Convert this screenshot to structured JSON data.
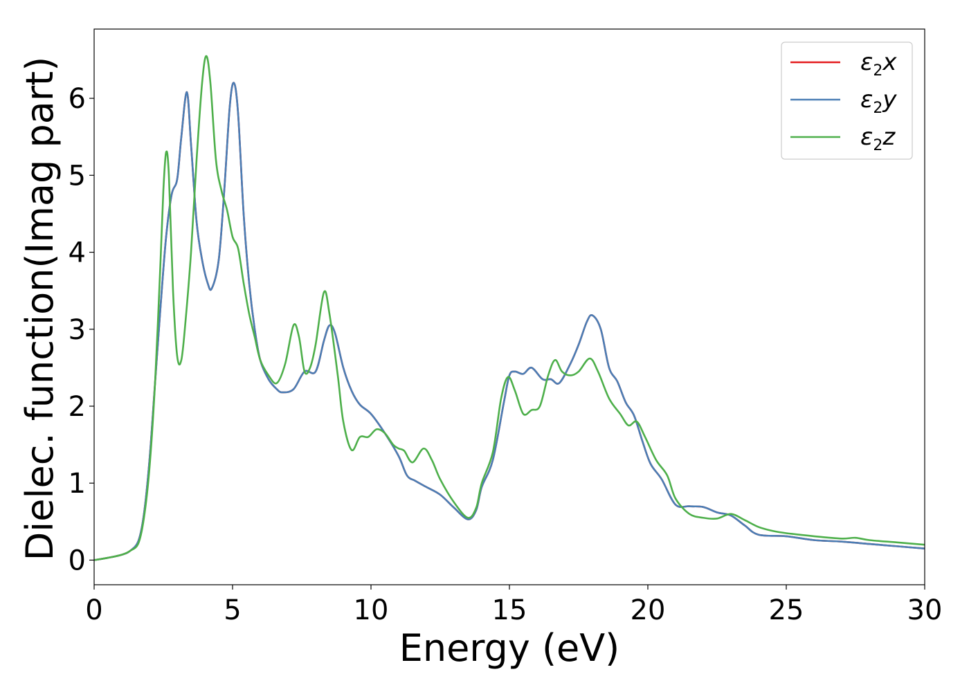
{
  "chart_data": {
    "type": "line",
    "title": "",
    "xlabel": "Energy (eV)",
    "ylabel": "Dielec. function(Imag part)",
    "xlim": [
      0,
      30
    ],
    "ylim": [
      -0.32,
      6.9
    ],
    "xticks": [
      "0",
      "5",
      "10",
      "15",
      "20",
      "25",
      "30"
    ],
    "yticks": [
      "0",
      "1",
      "2",
      "3",
      "4",
      "5",
      "6"
    ],
    "grid": false,
    "legend": {
      "placement": "top-right"
    },
    "series": [
      {
        "name": "ε₂x",
        "legend_base": "ε",
        "legend_sub": "2",
        "legend_var": "x",
        "color": "#e41a1c",
        "points": [
          [
            0,
            0
          ],
          [
            0.5,
            0.03
          ],
          [
            1.0,
            0.07
          ],
          [
            1.3,
            0.12
          ],
          [
            1.6,
            0.25
          ],
          [
            1.8,
            0.6
          ],
          [
            2.0,
            1.3
          ],
          [
            2.2,
            2.3
          ],
          [
            2.4,
            3.3
          ],
          [
            2.6,
            4.2
          ],
          [
            2.8,
            4.75
          ],
          [
            3.0,
            4.95
          ],
          [
            3.15,
            5.5
          ],
          [
            3.35,
            6.08
          ],
          [
            3.5,
            5.4
          ],
          [
            3.7,
            4.4
          ],
          [
            3.9,
            3.9
          ],
          [
            4.1,
            3.6
          ],
          [
            4.25,
            3.53
          ],
          [
            4.5,
            3.9
          ],
          [
            4.7,
            4.8
          ],
          [
            4.9,
            5.9
          ],
          [
            5.05,
            6.2
          ],
          [
            5.2,
            5.8
          ],
          [
            5.4,
            4.5
          ],
          [
            5.6,
            3.6
          ],
          [
            5.8,
            3.0
          ],
          [
            6.0,
            2.6
          ],
          [
            6.3,
            2.35
          ],
          [
            6.6,
            2.22
          ],
          [
            6.8,
            2.18
          ],
          [
            7.2,
            2.22
          ],
          [
            7.6,
            2.45
          ],
          [
            8.0,
            2.45
          ],
          [
            8.3,
            2.85
          ],
          [
            8.5,
            3.05
          ],
          [
            8.7,
            2.95
          ],
          [
            9.0,
            2.5
          ],
          [
            9.3,
            2.2
          ],
          [
            9.6,
            2.02
          ],
          [
            10.0,
            1.9
          ],
          [
            10.5,
            1.65
          ],
          [
            11.0,
            1.35
          ],
          [
            11.3,
            1.1
          ],
          [
            11.6,
            1.03
          ],
          [
            12.0,
            0.95
          ],
          [
            12.5,
            0.85
          ],
          [
            13.0,
            0.68
          ],
          [
            13.5,
            0.53
          ],
          [
            13.8,
            0.65
          ],
          [
            14.0,
            0.95
          ],
          [
            14.4,
            1.3
          ],
          [
            14.8,
            2.05
          ],
          [
            15.0,
            2.4
          ],
          [
            15.2,
            2.45
          ],
          [
            15.5,
            2.42
          ],
          [
            15.8,
            2.5
          ],
          [
            16.2,
            2.35
          ],
          [
            16.5,
            2.35
          ],
          [
            16.8,
            2.3
          ],
          [
            17.2,
            2.55
          ],
          [
            17.5,
            2.8
          ],
          [
            17.8,
            3.1
          ],
          [
            18.0,
            3.18
          ],
          [
            18.3,
            3.0
          ],
          [
            18.6,
            2.5
          ],
          [
            18.9,
            2.32
          ],
          [
            19.2,
            2.05
          ],
          [
            19.5,
            1.88
          ],
          [
            19.8,
            1.55
          ],
          [
            20.1,
            1.25
          ],
          [
            20.5,
            1.05
          ],
          [
            21.0,
            0.72
          ],
          [
            21.5,
            0.7
          ],
          [
            22.0,
            0.69
          ],
          [
            22.5,
            0.62
          ],
          [
            23.0,
            0.58
          ],
          [
            23.5,
            0.45
          ],
          [
            24.0,
            0.33
          ],
          [
            25.0,
            0.31
          ],
          [
            26.0,
            0.26
          ],
          [
            27.0,
            0.24
          ],
          [
            28.0,
            0.21
          ],
          [
            29.0,
            0.18
          ],
          [
            30.0,
            0.15
          ]
        ]
      },
      {
        "name": "ε₂y",
        "legend_base": "ε",
        "legend_sub": "2",
        "legend_var": "y",
        "color": "#4a7eb5",
        "points": [
          [
            0,
            0
          ],
          [
            0.5,
            0.03
          ],
          [
            1.0,
            0.07
          ],
          [
            1.3,
            0.12
          ],
          [
            1.6,
            0.25
          ],
          [
            1.8,
            0.6
          ],
          [
            2.0,
            1.3
          ],
          [
            2.2,
            2.3
          ],
          [
            2.4,
            3.3
          ],
          [
            2.6,
            4.2
          ],
          [
            2.8,
            4.75
          ],
          [
            3.0,
            4.95
          ],
          [
            3.15,
            5.5
          ],
          [
            3.35,
            6.08
          ],
          [
            3.5,
            5.4
          ],
          [
            3.7,
            4.4
          ],
          [
            3.9,
            3.9
          ],
          [
            4.1,
            3.6
          ],
          [
            4.25,
            3.53
          ],
          [
            4.5,
            3.9
          ],
          [
            4.7,
            4.8
          ],
          [
            4.9,
            5.9
          ],
          [
            5.05,
            6.2
          ],
          [
            5.2,
            5.8
          ],
          [
            5.4,
            4.5
          ],
          [
            5.6,
            3.6
          ],
          [
            5.8,
            3.0
          ],
          [
            6.0,
            2.6
          ],
          [
            6.3,
            2.35
          ],
          [
            6.6,
            2.22
          ],
          [
            6.8,
            2.18
          ],
          [
            7.2,
            2.22
          ],
          [
            7.6,
            2.45
          ],
          [
            8.0,
            2.45
          ],
          [
            8.3,
            2.85
          ],
          [
            8.5,
            3.05
          ],
          [
            8.7,
            2.95
          ],
          [
            9.0,
            2.5
          ],
          [
            9.3,
            2.2
          ],
          [
            9.6,
            2.02
          ],
          [
            10.0,
            1.9
          ],
          [
            10.5,
            1.65
          ],
          [
            11.0,
            1.35
          ],
          [
            11.3,
            1.1
          ],
          [
            11.6,
            1.03
          ],
          [
            12.0,
            0.95
          ],
          [
            12.5,
            0.85
          ],
          [
            13.0,
            0.68
          ],
          [
            13.5,
            0.53
          ],
          [
            13.8,
            0.65
          ],
          [
            14.0,
            0.95
          ],
          [
            14.4,
            1.3
          ],
          [
            14.8,
            2.05
          ],
          [
            15.0,
            2.4
          ],
          [
            15.2,
            2.45
          ],
          [
            15.5,
            2.42
          ],
          [
            15.8,
            2.5
          ],
          [
            16.2,
            2.35
          ],
          [
            16.5,
            2.35
          ],
          [
            16.8,
            2.3
          ],
          [
            17.2,
            2.55
          ],
          [
            17.5,
            2.8
          ],
          [
            17.8,
            3.1
          ],
          [
            18.0,
            3.18
          ],
          [
            18.3,
            3.0
          ],
          [
            18.6,
            2.5
          ],
          [
            18.9,
            2.32
          ],
          [
            19.2,
            2.05
          ],
          [
            19.5,
            1.88
          ],
          [
            19.8,
            1.55
          ],
          [
            20.1,
            1.25
          ],
          [
            20.5,
            1.05
          ],
          [
            21.0,
            0.72
          ],
          [
            21.5,
            0.7
          ],
          [
            22.0,
            0.69
          ],
          [
            22.5,
            0.62
          ],
          [
            23.0,
            0.58
          ],
          [
            23.5,
            0.45
          ],
          [
            24.0,
            0.33
          ],
          [
            25.0,
            0.31
          ],
          [
            26.0,
            0.26
          ],
          [
            27.0,
            0.24
          ],
          [
            28.0,
            0.21
          ],
          [
            29.0,
            0.18
          ],
          [
            30.0,
            0.15
          ]
        ]
      },
      {
        "name": "ε₂z",
        "legend_base": "ε",
        "legend_sub": "2",
        "legend_var": "z",
        "color": "#4daf4a",
        "points": [
          [
            0,
            0
          ],
          [
            0.5,
            0.03
          ],
          [
            1.0,
            0.07
          ],
          [
            1.3,
            0.12
          ],
          [
            1.6,
            0.22
          ],
          [
            1.8,
            0.55
          ],
          [
            2.0,
            1.2
          ],
          [
            2.2,
            2.3
          ],
          [
            2.4,
            3.9
          ],
          [
            2.5,
            4.8
          ],
          [
            2.6,
            5.3
          ],
          [
            2.7,
            5.0
          ],
          [
            2.85,
            3.5
          ],
          [
            3.0,
            2.65
          ],
          [
            3.15,
            2.6
          ],
          [
            3.3,
            3.1
          ],
          [
            3.5,
            4.0
          ],
          [
            3.7,
            5.2
          ],
          [
            3.9,
            6.2
          ],
          [
            4.05,
            6.55
          ],
          [
            4.2,
            6.2
          ],
          [
            4.4,
            5.2
          ],
          [
            4.6,
            4.8
          ],
          [
            4.8,
            4.55
          ],
          [
            5.0,
            4.2
          ],
          [
            5.2,
            4.05
          ],
          [
            5.4,
            3.6
          ],
          [
            5.6,
            3.2
          ],
          [
            5.8,
            2.9
          ],
          [
            6.0,
            2.6
          ],
          [
            6.3,
            2.4
          ],
          [
            6.6,
            2.3
          ],
          [
            6.9,
            2.55
          ],
          [
            7.2,
            3.05
          ],
          [
            7.4,
            2.9
          ],
          [
            7.6,
            2.45
          ],
          [
            7.8,
            2.5
          ],
          [
            8.0,
            2.8
          ],
          [
            8.3,
            3.48
          ],
          [
            8.5,
            3.2
          ],
          [
            8.8,
            2.4
          ],
          [
            9.0,
            1.8
          ],
          [
            9.3,
            1.43
          ],
          [
            9.6,
            1.6
          ],
          [
            9.9,
            1.6
          ],
          [
            10.2,
            1.7
          ],
          [
            10.5,
            1.65
          ],
          [
            10.8,
            1.5
          ],
          [
            11.0,
            1.45
          ],
          [
            11.2,
            1.42
          ],
          [
            11.5,
            1.27
          ],
          [
            11.9,
            1.45
          ],
          [
            12.2,
            1.3
          ],
          [
            12.5,
            1.05
          ],
          [
            13.0,
            0.75
          ],
          [
            13.5,
            0.55
          ],
          [
            13.8,
            0.68
          ],
          [
            14.0,
            1.0
          ],
          [
            14.4,
            1.4
          ],
          [
            14.7,
            2.1
          ],
          [
            14.95,
            2.38
          ],
          [
            15.2,
            2.2
          ],
          [
            15.5,
            1.9
          ],
          [
            15.8,
            1.95
          ],
          [
            16.1,
            2.0
          ],
          [
            16.4,
            2.4
          ],
          [
            16.65,
            2.6
          ],
          [
            16.9,
            2.45
          ],
          [
            17.2,
            2.4
          ],
          [
            17.5,
            2.45
          ],
          [
            17.9,
            2.62
          ],
          [
            18.2,
            2.45
          ],
          [
            18.6,
            2.1
          ],
          [
            19.0,
            1.9
          ],
          [
            19.3,
            1.75
          ],
          [
            19.6,
            1.8
          ],
          [
            19.9,
            1.6
          ],
          [
            20.3,
            1.3
          ],
          [
            20.7,
            1.1
          ],
          [
            21.0,
            0.8
          ],
          [
            21.5,
            0.6
          ],
          [
            22.0,
            0.55
          ],
          [
            22.5,
            0.54
          ],
          [
            23.0,
            0.6
          ],
          [
            23.5,
            0.52
          ],
          [
            24.0,
            0.43
          ],
          [
            24.5,
            0.38
          ],
          [
            25.0,
            0.35
          ],
          [
            26.0,
            0.31
          ],
          [
            27.0,
            0.28
          ],
          [
            27.5,
            0.29
          ],
          [
            28.0,
            0.26
          ],
          [
            29.0,
            0.23
          ],
          [
            30.0,
            0.2
          ]
        ]
      }
    ]
  }
}
